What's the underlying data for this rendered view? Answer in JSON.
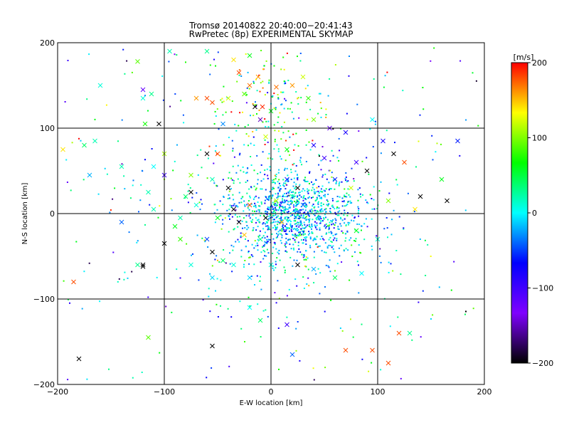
{
  "chart_data": {
    "type": "scatter",
    "title": "Tromsø 20140822 20:40:00−20:41:43",
    "subtitle": "RwPretec (8p) EXPERIMENTAL SKYMAP",
    "xlabel": "E-W location [km]",
    "ylabel": "N-S location [km]",
    "xlim": [
      -200,
      200
    ],
    "ylim": [
      -200,
      200
    ],
    "xticks": [
      "−200",
      "−100",
      "0",
      "100",
      "200"
    ],
    "yticks": [
      "−200",
      "−100",
      "0",
      "100",
      "200"
    ],
    "grid": true,
    "colorbar": {
      "label": "[m/s]",
      "range": [
        -200,
        200
      ],
      "ticks": [
        "200",
        "100",
        "0",
        "−100",
        "−200"
      ],
      "stops": [
        "#000000",
        "#7f00ff",
        "#0000ff",
        "#00ffff",
        "#00ff00",
        "#ffff00",
        "#ff0000"
      ]
    },
    "series": [
      {
        "marker": "x",
        "points": [
          [
            -175,
            80,
            40
          ],
          [
            -160,
            150,
            10
          ],
          [
            -165,
            85,
            20
          ],
          [
            -195,
            75,
            140
          ],
          [
            -170,
            45,
            -20
          ],
          [
            -140,
            55,
            20
          ],
          [
            -125,
            178,
            90
          ],
          [
            -120,
            135,
            10
          ],
          [
            -112,
            140,
            30
          ],
          [
            -118,
            105,
            70
          ],
          [
            -105,
            105,
            -200
          ],
          [
            -120,
            145,
            -120
          ],
          [
            -100,
            70,
            110
          ],
          [
            -100,
            45,
            -100
          ],
          [
            -110,
            55,
            0
          ],
          [
            -115,
            25,
            20
          ],
          [
            -95,
            190,
            20
          ],
          [
            -60,
            190,
            30
          ],
          [
            -70,
            135,
            160
          ],
          [
            -60,
            135,
            180
          ],
          [
            -55,
            130,
            180
          ],
          [
            -45,
            105,
            -30
          ],
          [
            -35,
            180,
            140
          ],
          [
            -20,
            185,
            60
          ],
          [
            -40,
            135,
            120
          ],
          [
            -30,
            165,
            180
          ],
          [
            -25,
            140,
            90
          ],
          [
            -20,
            150,
            170
          ],
          [
            -12,
            160,
            160
          ],
          [
            -8,
            125,
            190
          ],
          [
            -15,
            125,
            -200
          ],
          [
            -10,
            110,
            -150
          ],
          [
            0,
            120,
            60
          ],
          [
            5,
            148,
            170
          ],
          [
            30,
            160,
            120
          ],
          [
            35,
            135,
            80
          ],
          [
            20,
            150,
            160
          ],
          [
            40,
            110,
            100
          ],
          [
            55,
            100,
            -120
          ],
          [
            70,
            95,
            -80
          ],
          [
            95,
            110,
            0
          ],
          [
            105,
            85,
            -80
          ],
          [
            115,
            70,
            -200
          ],
          [
            125,
            60,
            180
          ],
          [
            140,
            20,
            -200
          ],
          [
            160,
            40,
            60
          ],
          [
            165,
            15,
            -200
          ],
          [
            175,
            85,
            -60
          ],
          [
            135,
            5,
            140
          ],
          [
            110,
            15,
            100
          ],
          [
            -140,
            -10,
            -40
          ],
          [
            -110,
            5,
            20
          ],
          [
            -90,
            -15,
            60
          ],
          [
            -75,
            25,
            -200
          ],
          [
            -60,
            70,
            -200
          ],
          [
            -55,
            40,
            20
          ],
          [
            -40,
            30,
            -200
          ],
          [
            -35,
            5,
            -200
          ],
          [
            -30,
            -10,
            -200
          ],
          [
            -50,
            -5,
            60
          ],
          [
            -55,
            -45,
            -200
          ],
          [
            -60,
            -30,
            -50
          ],
          [
            -70,
            10,
            10
          ],
          [
            -80,
            20,
            40
          ],
          [
            -85,
            -5,
            20
          ],
          [
            -100,
            -35,
            -200
          ],
          [
            -120,
            -60,
            -200
          ],
          [
            -120,
            -62,
            -200
          ],
          [
            -125,
            -60,
            30
          ],
          [
            -185,
            -80,
            180
          ],
          [
            -180,
            -170,
            -200
          ],
          [
            -115,
            -145,
            90
          ],
          [
            -55,
            -155,
            -200
          ],
          [
            -10,
            -125,
            40
          ],
          [
            15,
            -130,
            -100
          ],
          [
            -20,
            -110,
            0
          ],
          [
            20,
            -165,
            -40
          ],
          [
            70,
            -160,
            180
          ],
          [
            95,
            -160,
            180
          ],
          [
            110,
            -175,
            180
          ],
          [
            120,
            -140,
            180
          ],
          [
            130,
            -140,
            30
          ],
          [
            80,
            -20,
            60
          ],
          [
            100,
            -30,
            10
          ],
          [
            90,
            50,
            -200
          ],
          [
            80,
            60,
            -100
          ],
          [
            60,
            40,
            -60
          ],
          [
            75,
            30,
            120
          ],
          [
            50,
            65,
            -100
          ],
          [
            40,
            80,
            -80
          ],
          [
            15,
            40,
            -60
          ],
          [
            25,
            30,
            -200
          ],
          [
            20,
            20,
            20
          ],
          [
            30,
            10,
            -40
          ],
          [
            10,
            -10,
            150
          ],
          [
            -5,
            -5,
            -200
          ],
          [
            5,
            15,
            110
          ],
          [
            -10,
            -30,
            30
          ],
          [
            -20,
            10,
            180
          ],
          [
            -25,
            -25,
            150
          ],
          [
            -45,
            -55,
            40
          ],
          [
            -35,
            -60,
            10
          ],
          [
            -20,
            -75,
            -10
          ],
          [
            0,
            -60,
            10
          ],
          [
            25,
            -60,
            -200
          ],
          [
            40,
            -65,
            -20
          ],
          [
            60,
            -75,
            40
          ],
          [
            85,
            -70,
            0
          ],
          [
            -55,
            -75,
            -10
          ],
          [
            -75,
            -60,
            10
          ],
          [
            -85,
            -30,
            80
          ],
          [
            15,
            75,
            60
          ],
          [
            -5,
            90,
            120
          ],
          [
            -50,
            70,
            180
          ],
          [
            -75,
            45,
            100
          ]
        ]
      },
      {
        "marker": "dot",
        "note": "",
        "points": []
      }
    ]
  }
}
